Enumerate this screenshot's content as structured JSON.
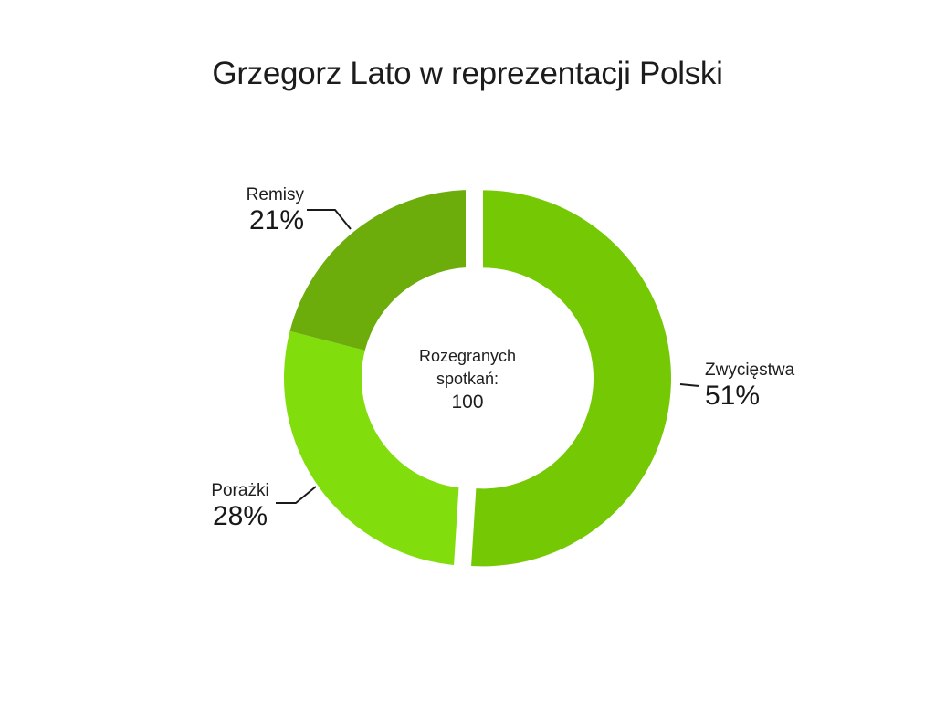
{
  "title": "Grzegorz Lato w reprezentacji Polski",
  "chart_data": {
    "type": "pie",
    "subtype": "donut",
    "title": "Grzegorz Lato w reprezentacji Polski",
    "categories": [
      "Zwycięstwa",
      "Porażki",
      "Remisy"
    ],
    "values": [
      51,
      28,
      21
    ],
    "unit": "%",
    "slice_colors": [
      "#74C904",
      "#81DD0C",
      "#6CAC0B"
    ],
    "start_angle": "top",
    "direction": "clockwise",
    "exploded_slice": "Zwycięstwa",
    "legend": "none",
    "labels_outside": true,
    "center_text": [
      "Rozegranych",
      "spotkań:",
      "100"
    ]
  },
  "callouts": {
    "zwyciestwa": {
      "name": "Zwycięstwa",
      "value": "51%"
    },
    "porazki": {
      "name": "Porażki",
      "value": "28%"
    },
    "remisy": {
      "name": "Remisy",
      "value": "21%"
    }
  },
  "center": {
    "line1": "Rozegranych",
    "line2": "spotkań:",
    "line3": "100"
  },
  "colors": {
    "background": "#FFFFFF",
    "text": "#1E1E1E",
    "leader_line": "#1A1A1A",
    "zwyciestwa": "#74C904",
    "porazki": "#81DD0C",
    "remisy": "#6CAC0B"
  }
}
